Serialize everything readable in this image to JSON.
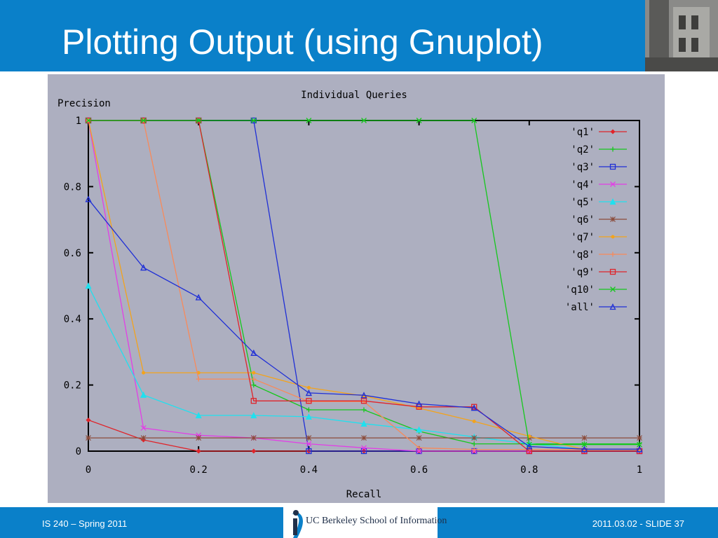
{
  "slide": {
    "title": "Plotting Output (using Gnuplot)",
    "footer_left": "IS 240 – Spring 2011",
    "footer_right": "2011.03.02 - SLIDE 37",
    "logo_text": "UC Berkeley School of Information",
    "logo_mark": "i"
  },
  "colors": {
    "header": "#0a80c9",
    "plot_bg": "#adafc0"
  },
  "chart_data": {
    "type": "line",
    "title": "Individual Queries",
    "xlabel": "Recall",
    "ylabel": "Precision",
    "xlim": [
      0,
      1
    ],
    "ylim": [
      0,
      1
    ],
    "xticks": [
      "0",
      "0.2",
      "0.4",
      "0.6",
      "0.8",
      "1"
    ],
    "yticks": [
      "0",
      "0.2",
      "0.4",
      "0.6",
      "0.8",
      "1"
    ],
    "grid": false,
    "legend_position": "top-right",
    "x": [
      0,
      0.1,
      0.2,
      0.3,
      0.4,
      0.5,
      0.6,
      0.7,
      0.8,
      0.9,
      1.0
    ],
    "series": [
      {
        "name": "'q1'",
        "color": "#e0242a",
        "marker": "diamond",
        "values": [
          0.094,
          0.034,
          0,
          0,
          0,
          0,
          0,
          0,
          0,
          0,
          0
        ]
      },
      {
        "name": "'q2'",
        "color": "#15c81c",
        "marker": "plus",
        "values": [
          1,
          1,
          1,
          0.2,
          0.125,
          0.125,
          0.06,
          0.022,
          0.022,
          0.022,
          0.022
        ]
      },
      {
        "name": "'q3'",
        "color": "#1f2fd6",
        "marker": "square",
        "values": [
          1,
          1,
          1,
          1,
          0,
          0,
          0,
          0,
          0,
          0,
          0
        ]
      },
      {
        "name": "'q4'",
        "color": "#e23fe6",
        "marker": "cross",
        "values": [
          1,
          0.07,
          0.048,
          0.04,
          0.022,
          0.01,
          0,
          0,
          0,
          0,
          0
        ]
      },
      {
        "name": "'q5'",
        "color": "#20e0ee",
        "marker": "triangle-filled",
        "values": [
          0.5,
          0.17,
          0.108,
          0.108,
          0.104,
          0.083,
          0.065,
          0.043,
          0.022,
          0.005,
          0.005
        ]
      },
      {
        "name": "'q6'",
        "color": "#8b4b3a",
        "marker": "star",
        "values": [
          0.04,
          0.04,
          0.04,
          0.04,
          0.04,
          0.04,
          0.04,
          0.04,
          0.04,
          0.04,
          0.04
        ]
      },
      {
        "name": "'q7'",
        "color": "#f3a31c",
        "marker": "dot",
        "values": [
          1,
          0.237,
          0.237,
          0.237,
          0.192,
          0.167,
          0.13,
          0.09,
          0.045,
          0.005,
          0.005
        ]
      },
      {
        "name": "'q8'",
        "color": "#f88a5a",
        "marker": "plus",
        "values": [
          1,
          1,
          0.218,
          0.218,
          0.15,
          0.15,
          0.01,
          0.005,
          0.005,
          0.005,
          0.005
        ]
      },
      {
        "name": "'q9'",
        "color": "#e0242a",
        "marker": "square",
        "values": [
          1,
          1,
          1,
          0.152,
          0.152,
          0.152,
          0.134,
          0.134,
          0,
          0,
          0
        ]
      },
      {
        "name": "'q10'",
        "color": "#15c81c",
        "marker": "cross",
        "values": [
          1,
          1,
          1,
          1,
          1,
          1,
          1,
          1,
          0.02,
          0.02,
          0.02
        ]
      },
      {
        "name": "'all'",
        "color": "#1f2fd6",
        "marker": "triangle",
        "values": [
          0.762,
          0.555,
          0.465,
          0.297,
          0.176,
          0.169,
          0.143,
          0.131,
          0.014,
          0.006,
          0.006
        ]
      }
    ]
  }
}
